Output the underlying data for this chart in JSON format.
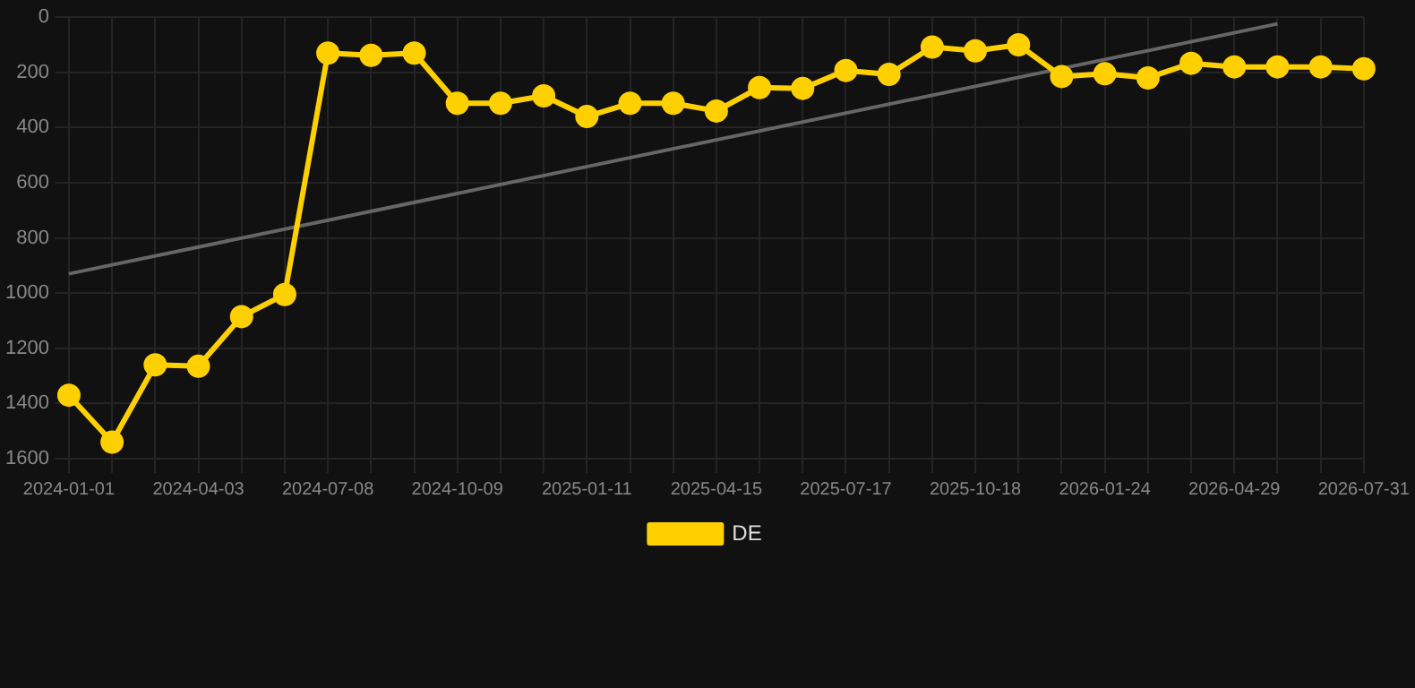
{
  "chart_data": {
    "type": "line",
    "categories": [
      "2024-01-01",
      null,
      null,
      "2024-04-03",
      null,
      null,
      "2024-07-08",
      null,
      null,
      "2024-10-09",
      null,
      null,
      "2025-01-11",
      null,
      null,
      "2025-04-15",
      null,
      null,
      "2025-07-17",
      null,
      null,
      "2025-10-18",
      null,
      null,
      "2026-01-24",
      null,
      null,
      "2026-04-29",
      null,
      null,
      "2026-07-31"
    ],
    "series": [
      {
        "name": "DE",
        "color": "#ffd000",
        "marker": "circle",
        "values": [
          1370,
          1540,
          1260,
          1265,
          1085,
          1005,
          130,
          138,
          130,
          312,
          312,
          285,
          360,
          312,
          312,
          340,
          255,
          258,
          193,
          207,
          108,
          122,
          100,
          215,
          205,
          220,
          167,
          180,
          180,
          180,
          187
        ]
      },
      {
        "type": "line",
        "color": "#666666",
        "marker": "none",
        "values": [
          930,
          null,
          null,
          null,
          null,
          null,
          null,
          null,
          null,
          null,
          null,
          null,
          null,
          null,
          null,
          null,
          null,
          null,
          null,
          null,
          null,
          null,
          null,
          null,
          null,
          null,
          null,
          null,
          24,
          null,
          null
        ]
      }
    ],
    "ylim": [
      1600,
      0
    ],
    "yticks": [
      0,
      200,
      400,
      600,
      800,
      1000,
      1200,
      1400,
      1600
    ],
    "grid": true,
    "legend": "bottom"
  }
}
